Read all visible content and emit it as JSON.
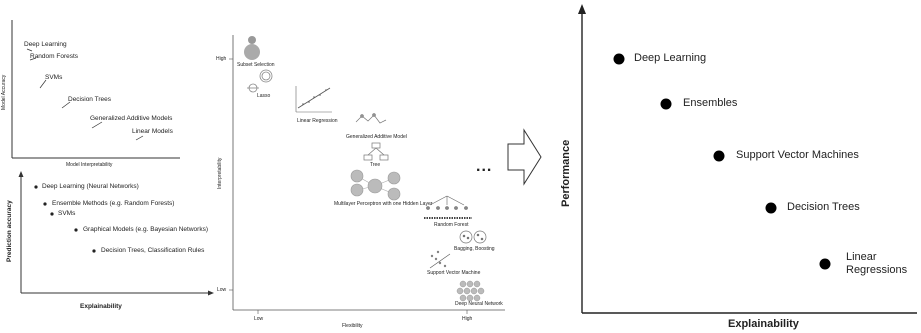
{
  "panel_top_left": {
    "ylabel": "Model Accuracy",
    "xlabel": "Model Interpretability",
    "items": [
      "Deep Learning",
      "Random Forests",
      "SVMs",
      "Decision Trees",
      "Generalized Additive Models",
      "Linear Models"
    ]
  },
  "panel_bottom_left": {
    "ylabel": "Prediction accuracy",
    "xlabel": "Explainability",
    "items": [
      "Deep Learning (Neural Networks)",
      "Ensemble Methods (e.g. Random Forests)",
      "SVMs",
      "Graphical Models (e.g. Bayesian Networks)",
      "Decision Trees, Classification Rules"
    ]
  },
  "panel_middle": {
    "ylabel": "Interpretability",
    "xlabel": "Flexibility",
    "y_ticks": [
      "High",
      "Low"
    ],
    "x_ticks": [
      "Low",
      "High"
    ],
    "items": [
      "Subset Selection",
      "Lasso",
      "Linear Regression",
      "Generalized Additive Model",
      "Tree",
      "Multilayer Perceptron with one Hidden Layer",
      "Random Forest",
      "Bagging, Boosting",
      "Support Vector Machine",
      "Deep Neural Network"
    ]
  },
  "ellipsis": "...",
  "panel_right": {
    "ylabel": "Performance",
    "xlabel": "Explainability",
    "items": [
      "Deep Learning",
      "Ensembles",
      "Support Vector Machines",
      "Decision Trees",
      "Linear",
      "Regressions"
    ]
  }
}
